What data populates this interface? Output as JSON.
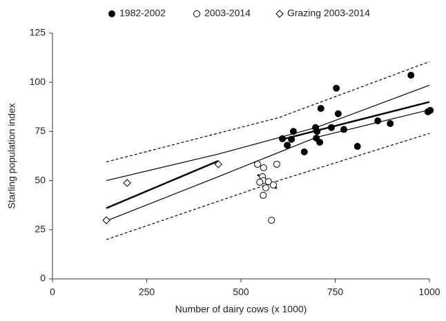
{
  "chart_data": {
    "type": "scatter",
    "xlabel": "Number of dairy cows (x 1000)",
    "ylabel": "Starling population index",
    "xlim": [
      0,
      1000
    ],
    "xticks": [
      0,
      250,
      500,
      750,
      1000
    ],
    "ylim": [
      0,
      125
    ],
    "yticks": [
      0,
      25,
      50,
      75,
      100,
      125
    ],
    "grid": false,
    "legend": "top",
    "series": [
      {
        "name": "1982-2002",
        "marker": "circle",
        "color": "#000000",
        "fill": "#000000",
        "x": [
          610,
          623,
          634,
          639,
          668,
          698,
          702,
          700,
          709,
          712,
          740,
          753,
          758,
          773,
          809,
          863,
          896,
          951,
          996,
          1002
        ],
        "values": [
          71.3,
          68,
          71,
          75,
          64.6,
          77,
          75,
          71.6,
          69.5,
          86.7,
          77,
          97,
          84,
          76,
          67.4,
          80.4,
          79,
          103.6,
          85,
          85.7
        ]
      },
      {
        "name": "2003-2014",
        "marker": "circle",
        "color": "#000000",
        "fill": "#ffffff",
        "x": [
          544,
          595,
          557,
          559,
          550,
          560,
          566,
          559,
          581,
          573,
          586
        ],
        "values": [
          58.3,
          58.3,
          52,
          50,
          49.2,
          56.5,
          46.3,
          42.5,
          29.8,
          49.5,
          47.8
        ]
      },
      {
        "name": "Grazing 2003-2014",
        "marker": "diamond",
        "color": "#000000",
        "fill": "#ffffff",
        "x": [
          143,
          198,
          440
        ],
        "values": [
          29.8,
          48.8,
          58.3
        ]
      }
    ],
    "lines": [
      {
        "style": "thick",
        "x": [
          610,
          1000
        ],
        "values": [
          71,
          90
        ]
      },
      {
        "style": "thick",
        "x": [
          143,
          440
        ],
        "values": [
          36,
          60
        ]
      },
      {
        "style": "thick",
        "x": [
          544,
          595
        ],
        "values": [
          53,
          46
        ]
      },
      {
        "style": "thin",
        "x": [
          143,
          440,
          700,
          1000
        ],
        "values": [
          50,
          63.5,
          77,
          98.5
        ]
      },
      {
        "style": "thin",
        "x": [
          143,
          440,
          700,
          1000
        ],
        "values": [
          29.5,
          52,
          72,
          86
        ]
      },
      {
        "style": "dashed",
        "x": [
          143,
          600,
          1000
        ],
        "values": [
          59.5,
          82,
          110.5
        ]
      },
      {
        "style": "dashed",
        "x": [
          143,
          600,
          1000
        ],
        "values": [
          20,
          50,
          74
        ]
      }
    ]
  }
}
